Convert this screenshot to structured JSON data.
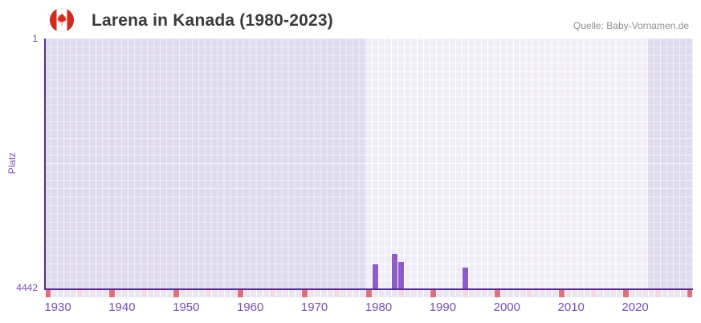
{
  "header": {
    "title": "Larena in Kanada (1980-2023)",
    "source": "Quelle: Baby-Vornamen.de",
    "flag_icon": "canada-flag-icon"
  },
  "chart_data": {
    "type": "bar",
    "title": "Larena in Kanada (1980-2023)",
    "xlabel": "",
    "ylabel": "Platz",
    "y_axis": {
      "min": 1,
      "max": 4442,
      "inverted": true,
      "tick_labels": [
        "1",
        "4442"
      ]
    },
    "x_axis": {
      "first_year": 1930,
      "last_year": 2030,
      "decade_labels": [
        "1930",
        "1940",
        "1950",
        "1960",
        "1970",
        "1980",
        "1990",
        "2000",
        "2010",
        "2020"
      ]
    },
    "data_range": {
      "start_year": 1980,
      "end_year": 2023
    },
    "bars": [
      {
        "year": 1981,
        "rank": 4031
      },
      {
        "year": 1984,
        "rank": 3846
      },
      {
        "year": 1985,
        "rank": 3979
      },
      {
        "year": 1995,
        "rank": 4083
      }
    ],
    "colors": {
      "bar": "#8b5dc8",
      "axis": "#562d8a",
      "tick_text": "#7a4eb4",
      "grid_cell_highlight": "#f0edf8",
      "grid_cell_muted": "#e0dbee",
      "decade_tick": "#e06e7d",
      "half_decade_tick": "#f4d8e3",
      "year_tick": "#e9e5f3"
    }
  }
}
